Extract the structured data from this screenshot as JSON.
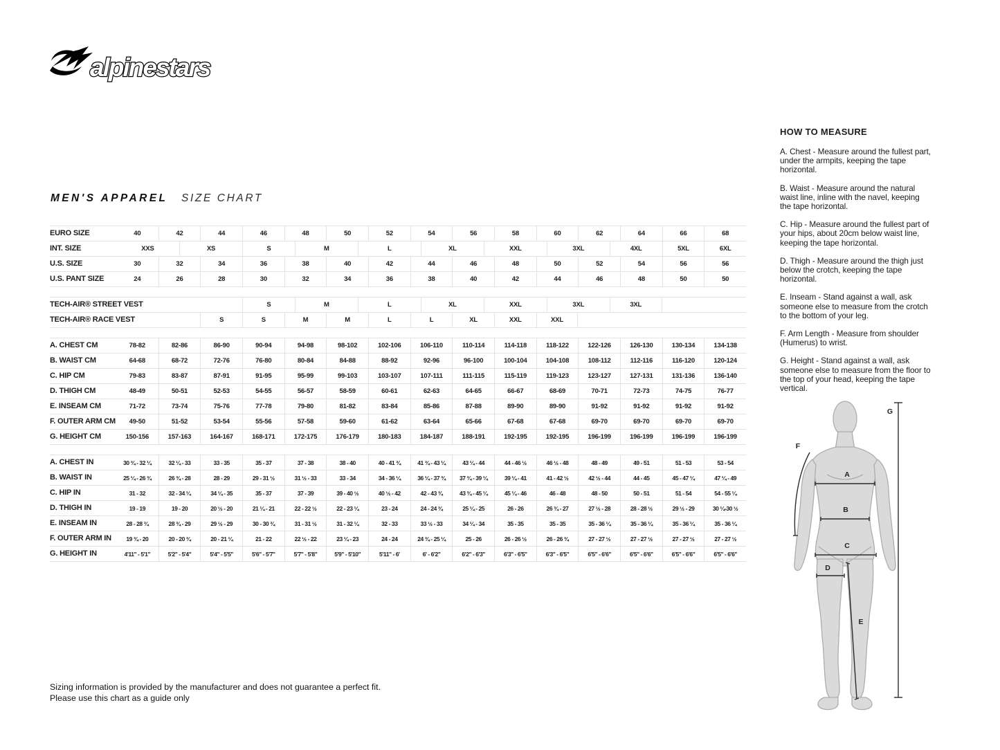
{
  "brand": {
    "name": "alpinestars"
  },
  "title": {
    "primary": "MEN'S APPAREL",
    "secondary": "SIZE CHART"
  },
  "size_table": {
    "units_per_row": 60,
    "groups": [
      {
        "name": "sizes",
        "rows": [
          {
            "label": "EURO SIZE",
            "values": [
              "40",
              "42",
              "44",
              "46",
              "48",
              "50",
              "52",
              "54",
              "56",
              "58",
              "60",
              "62",
              "64",
              "66",
              "68"
            ]
          },
          {
            "label": "INT. SIZE",
            "cells": [
              [
                "XXS",
                0,
                6
              ],
              [
                "XS",
                6,
                12
              ],
              [
                "S",
                12,
                17
              ],
              [
                "M",
                17,
                23
              ],
              [
                "L",
                23,
                29
              ],
              [
                "XL",
                29,
                35
              ],
              [
                "XXL",
                35,
                41
              ],
              [
                "3XL",
                41,
                47
              ],
              [
                "4XL",
                47,
                52
              ],
              [
                "5XL",
                52,
                56
              ],
              [
                "6XL",
                56,
                60
              ]
            ]
          },
          {
            "label": "U.S. SIZE",
            "values": [
              "30",
              "32",
              "34",
              "36",
              "38",
              "40",
              "42",
              "44",
              "46",
              "48",
              "50",
              "52",
              "54",
              "56",
              "56"
            ]
          },
          {
            "label": "U.S. PANT SIZE",
            "values": [
              "24",
              "26",
              "28",
              "30",
              "32",
              "34",
              "36",
              "38",
              "40",
              "42",
              "44",
              "46",
              "48",
              "50",
              "50"
            ]
          }
        ]
      },
      {
        "name": "tech_air",
        "rows": [
          {
            "label": "TECH-AIR® STREET VEST",
            "cells": [
              [
                "",
                0,
                12
              ],
              [
                "S",
                12,
                17
              ],
              [
                "M",
                17,
                23
              ],
              [
                "L",
                23,
                29
              ],
              [
                "XL",
                29,
                35
              ],
              [
                "XXL",
                35,
                41
              ],
              [
                "3XL",
                41,
                47
              ],
              [
                "3XL",
                47,
                52
              ]
            ]
          },
          {
            "label": "TECH-AIR® RACE VEST",
            "cells": [
              [
                "",
                0,
                8
              ],
              [
                "S",
                8,
                12
              ],
              [
                "S",
                12,
                16
              ],
              [
                "M",
                16,
                20
              ],
              [
                "M",
                20,
                24
              ],
              [
                "L",
                24,
                28
              ],
              [
                "L",
                28,
                32
              ],
              [
                "XL",
                32,
                36
              ],
              [
                "XXL",
                36,
                40
              ],
              [
                "XXL",
                40,
                44
              ]
            ]
          }
        ]
      },
      {
        "name": "cm",
        "rows": [
          {
            "label": "A. CHEST CM",
            "values": [
              "78-82",
              "82-86",
              "86-90",
              "90-94",
              "94-98",
              "98-102",
              "102-106",
              "106-110",
              "110-114",
              "114-118",
              "118-122",
              "122-126",
              "126-130",
              "130-134",
              "134-138"
            ]
          },
          {
            "label": "B. WAIST CM",
            "values": [
              "64-68",
              "68-72",
              "72-76",
              "76-80",
              "80-84",
              "84-88",
              "88-92",
              "92-96",
              "96-100",
              "100-104",
              "104-108",
              "108-112",
              "112-116",
              "116-120",
              "120-124"
            ]
          },
          {
            "label": "C. HIP CM",
            "values": [
              "79-83",
              "83-87",
              "87-91",
              "91-95",
              "95-99",
              "99-103",
              "103-107",
              "107-111",
              "111-115",
              "115-119",
              "119-123",
              "123-127",
              "127-131",
              "131-136",
              "136-140"
            ]
          },
          {
            "label": "D. THIGH CM",
            "values": [
              "48-49",
              "50-51",
              "52-53",
              "54-55",
              "56-57",
              "58-59",
              "60-61",
              "62-63",
              "64-65",
              "66-67",
              "68-69",
              "70-71",
              "72-73",
              "74-75",
              "76-77"
            ]
          },
          {
            "label": "E. INSEAM CM",
            "values": [
              "71-72",
              "73-74",
              "75-76",
              "77-78",
              "79-80",
              "81-82",
              "83-84",
              "85-86",
              "87-88",
              "89-90",
              "89-90",
              "91-92",
              "91-92",
              "91-92",
              "91-92"
            ]
          },
          {
            "label": "F. OUTER ARM CM",
            "values": [
              "49-50",
              "51-52",
              "53-54",
              "55-56",
              "57-58",
              "59-60",
              "61-62",
              "63-64",
              "65-66",
              "67-68",
              "67-68",
              "69-70",
              "69-70",
              "69-70",
              "69-70"
            ]
          },
          {
            "label": "G. HEIGHT CM",
            "values": [
              "150-156",
              "157-163",
              "164-167",
              "168-171",
              "172-175",
              "176-179",
              "180-183",
              "184-187",
              "188-191",
              "192-195",
              "192-195",
              "196-199",
              "196-199",
              "196-199",
              "196-199"
            ]
          }
        ]
      },
      {
        "name": "inches",
        "rows": [
          {
            "label": "A. CHEST IN",
            "values": [
              "30 ¾ - 32 ¼",
              "32 ¼ - 33",
              "33 - 35",
              "35 - 37",
              "37 - 38",
              "38 - 40",
              "40 - 41 ¾",
              "41 ¾ - 43 ¼",
              "43 ¼ - 44",
              "44 - 46 ½",
              "46 ½ - 48",
              "48 - 49",
              "49 - 51",
              "51 - 53",
              "53 - 54"
            ]
          },
          {
            "label": "B. WAIST IN",
            "values": [
              "25 ¼ - 26 ¾",
              "26 ¾ - 28",
              "28 - 29",
              "29 - 31 ½",
              "31 ½ - 33",
              "33 - 34",
              "34 - 36 ¼",
              "36 ¼ - 37 ¾",
              "37 ¾ - 39 ¼",
              "39 ¼ - 41",
              "41 - 42 ½",
              "42 ½ - 44",
              "44 - 45",
              "45 - 47 ¼",
              "47 ¼ - 49"
            ]
          },
          {
            "label": "C. HIP IN",
            "values": [
              "31 - 32",
              "32 - 34 ¼",
              "34 ¼ - 35",
              "35 - 37",
              "37 - 39",
              "39 - 40 ½",
              "40 ½ - 42",
              "42 - 43 ¾",
              "43 ¾ - 45 ¼",
              "45 ¼ - 46",
              "46 - 48",
              "48 - 50",
              "50 - 51",
              "51 - 54",
              "54 - 55 ¼"
            ]
          },
          {
            "label": "D. THIGH IN",
            "values": [
              "19 - 19",
              "19 - 20",
              "20 ½ - 20",
              "21 ¼ - 21",
              "22 - 22 ½",
              "22 - 23 ¼",
              "23 - 24",
              "24 - 24 ¾",
              "25 ¼ - 25",
              "26 - 26",
              "26 ¾ - 27",
              "27 ½ - 28",
              "28 - 28 ½",
              "29 ½ - 29",
              "30 ¼-30 ½"
            ]
          },
          {
            "label": "E. INSEAM IN",
            "values": [
              "28 - 28 ¾",
              "28 ¾ - 29",
              "29 ½ - 29",
              "30 - 30 ¾",
              "31 - 31 ½",
              "31 - 32 ¼",
              "32 - 33",
              "33 ½ - 33",
              "34 ¼ - 34",
              "35 - 35",
              "35 - 35",
              "35 - 36 ¼",
              "35 - 36 ¼",
              "35 - 36 ¼",
              "35 - 36 ¼"
            ]
          },
          {
            "label": "F. OUTER ARM IN",
            "values": [
              "19 ¾ - 20",
              "20 - 20 ¾",
              "20 - 21 ¼",
              "21 - 22",
              "22 ½ - 22",
              "23 ¼ - 23",
              "24 - 24",
              "24 ¾ - 25 ¼",
              "25 - 26",
              "26 - 26 ½",
              "26 - 26 ¾",
              "27 - 27 ½",
              "27 - 27 ½",
              "27 - 27 ½",
              "27 - 27 ½"
            ]
          },
          {
            "label": "G. HEIGHT IN",
            "values": [
              "4'11\" - 5'1\"",
              "5'2\" - 5'4\"",
              "5'4\" - 5'5\"",
              "5'6\" - 5'7\"",
              "5'7\" - 5'8\"",
              "5'9\" - 5'10\"",
              "5'11\" - 6'",
              "6' - 6'2\"",
              "6'2\" - 6'3\"",
              "6'3\" - 6'5\"",
              "6'3\" - 6'5\"",
              "6'5\" - 6'6\"",
              "6'5\" - 6'6\"",
              "6'5\" - 6'6\"",
              "6'5\" - 6'6\""
            ]
          }
        ]
      }
    ]
  },
  "how_to_measure": {
    "heading": "HOW TO MEASURE",
    "items": [
      "A. Chest - Measure around the fullest part, under the armpits, keeping the tape horizontal.",
      "B. Waist - Measure around the natural waist line, inline with the navel, keeping the tape horizontal.",
      "C. Hip - Measure around the fullest part of your hips, about 20cm below waist line, keeping the tape horizontal.",
      "D. Thigh - Measure around the thigh just below the crotch, keeping the tape horizontal.",
      "E. Inseam - Stand against a wall, ask someone else to measure from the crotch to the bottom of your leg.",
      "F. Arm Length - Measure from shoulder (Humerus) to wrist.",
      "G. Height - Stand against a wall, ask someone else to measure from the floor to the top of your head, keeping the tape vertical."
    ]
  },
  "figure": {
    "labels": [
      "A",
      "B",
      "C",
      "D",
      "E",
      "F",
      "G"
    ]
  },
  "footer": {
    "line1": "Sizing information is provided by the manufacturer and does not guarantee a perfect fit.",
    "line2": "Please use this chart as a guide only"
  }
}
